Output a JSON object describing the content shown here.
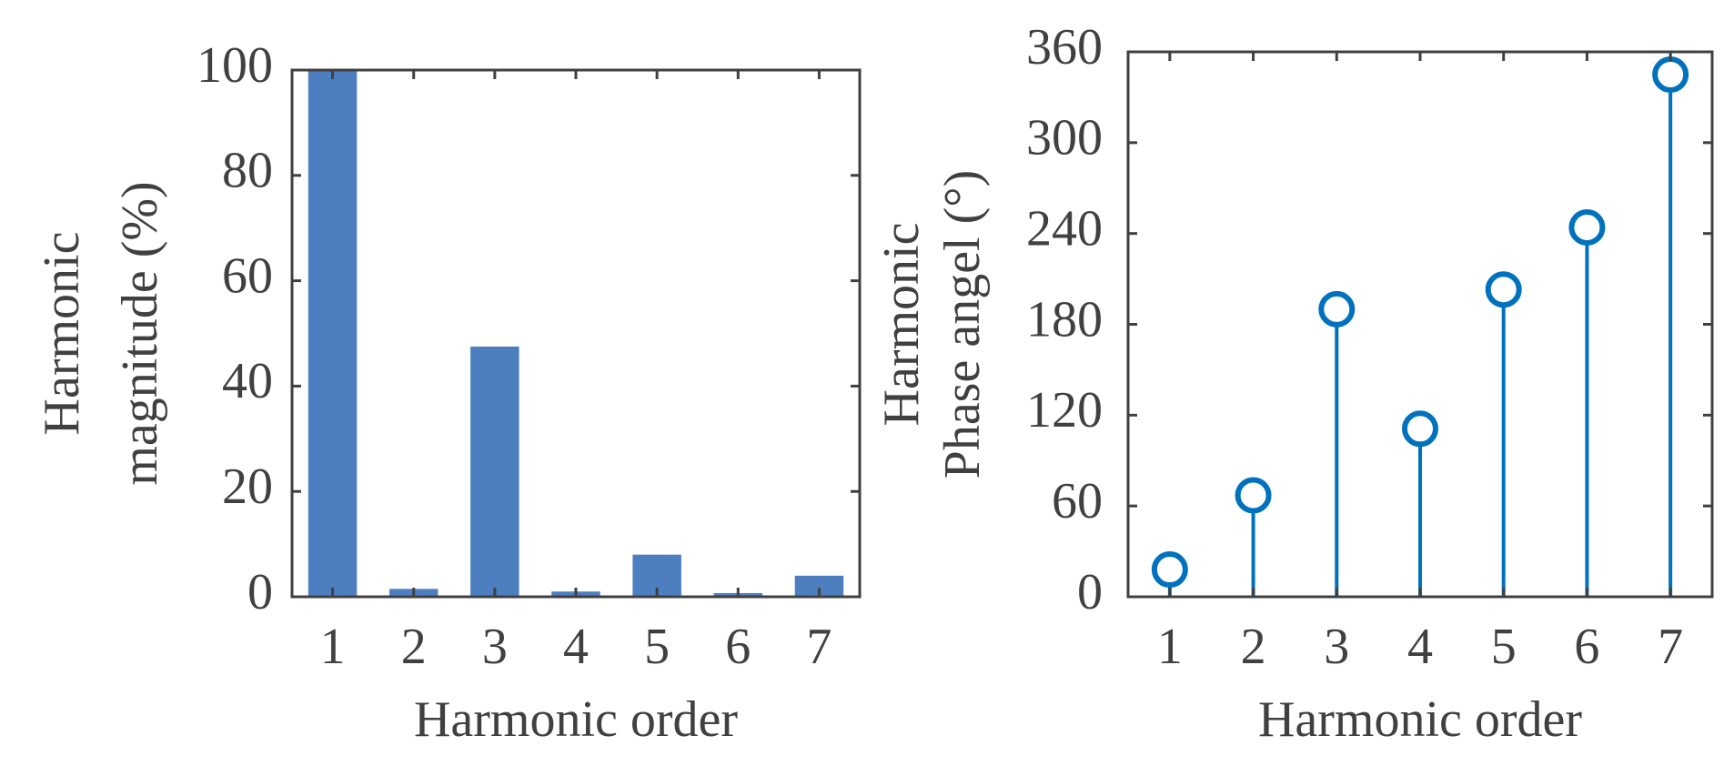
{
  "chart_data": [
    {
      "type": "bar",
      "ylabel": [
        "Harmonic",
        "magnitude (%)"
      ],
      "xlabel": "Harmonic order",
      "categories": [
        "1",
        "2",
        "3",
        "4",
        "5",
        "6",
        "7"
      ],
      "values": [
        100,
        1.5,
        47.5,
        1,
        8,
        0.7,
        4
      ],
      "color": "#4d7ebf",
      "ylim": [
        0,
        100
      ],
      "yticks": [
        0,
        20,
        40,
        60,
        80,
        100
      ]
    },
    {
      "type": "stem",
      "ylabel": [
        "Harmonic",
        "Phase angel (°)"
      ],
      "xlabel": "Harmonic order",
      "x": [
        1,
        2,
        3,
        4,
        5,
        6,
        7
      ],
      "values": [
        18,
        67,
        190,
        111,
        203,
        244,
        345
      ],
      "color": "#0072bd",
      "xlim": [
        0.5,
        7.5
      ],
      "xticks": [
        1,
        2,
        3,
        4,
        5,
        6,
        7
      ],
      "ylim": [
        0,
        360
      ],
      "yticks": [
        0,
        60,
        120,
        180,
        240,
        300,
        360
      ]
    }
  ]
}
